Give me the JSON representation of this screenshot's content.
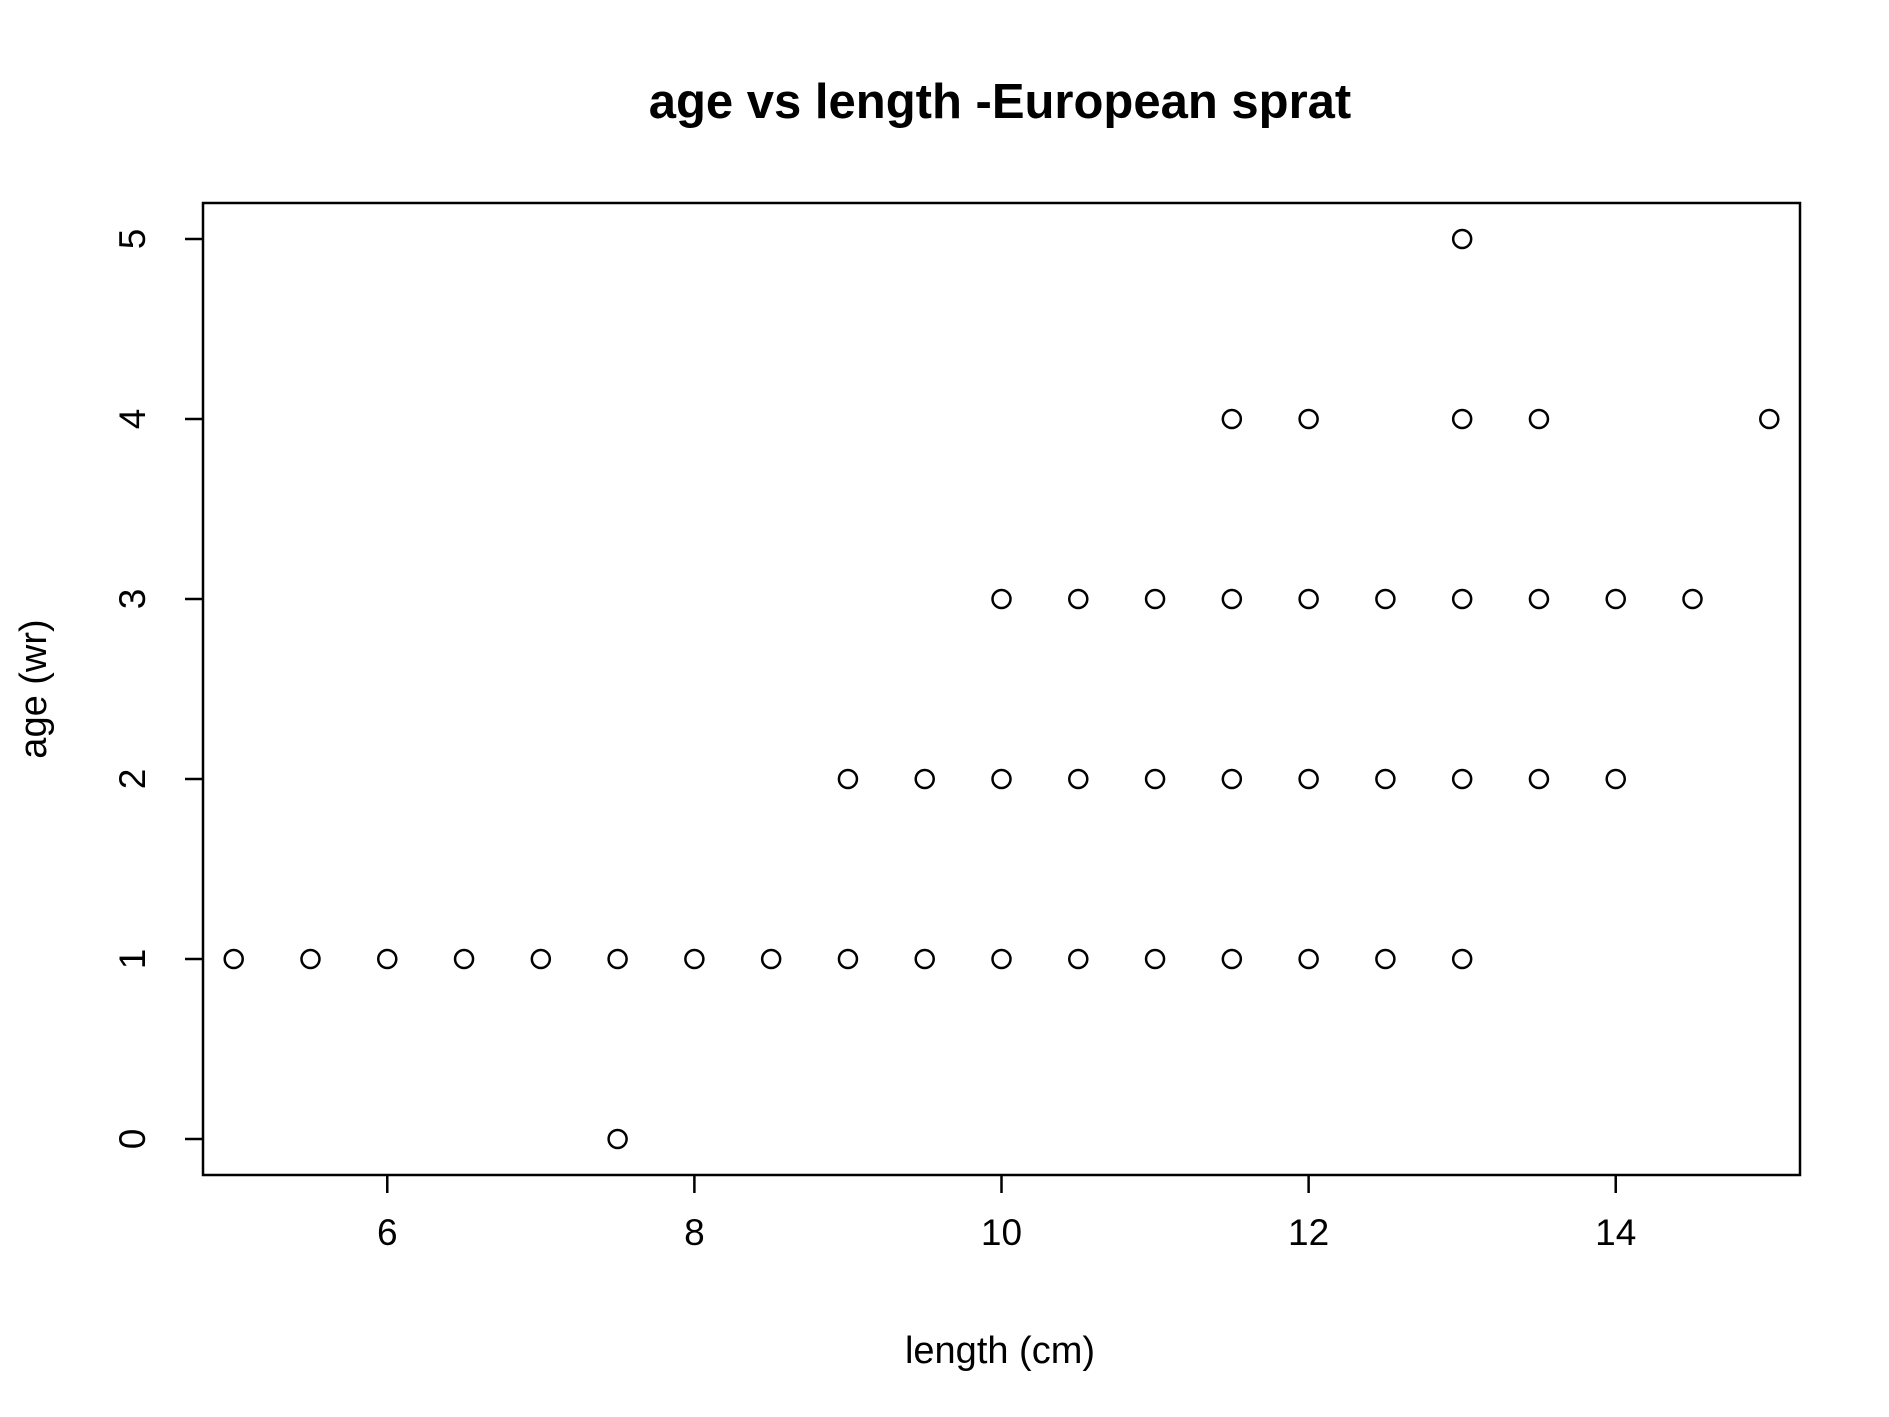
{
  "chart_data": {
    "type": "scatter",
    "title": "age vs length -European sprat",
    "xlabel": "length (cm)",
    "ylabel": "age (wr)",
    "xlim": [
      4.8,
      15.2
    ],
    "ylim": [
      -0.2,
      5.2
    ],
    "xticks": [
      6,
      8,
      10,
      12,
      14
    ],
    "yticks": [
      0,
      1,
      2,
      3,
      4,
      5
    ],
    "xtick_labels": [
      "6",
      "8",
      "10",
      "12",
      "14"
    ],
    "ytick_labels": [
      "0",
      "1",
      "2",
      "3",
      "4",
      "5"
    ],
    "grid": false,
    "legend": "none",
    "marker": "open-circle",
    "color": "#000000",
    "points": [
      [
        5,
        1
      ],
      [
        5.5,
        1
      ],
      [
        6,
        1
      ],
      [
        6.5,
        1
      ],
      [
        7,
        1
      ],
      [
        7.5,
        1
      ],
      [
        8,
        1
      ],
      [
        8.5,
        1
      ],
      [
        9,
        1
      ],
      [
        9.5,
        1
      ],
      [
        10,
        1
      ],
      [
        10.5,
        1
      ],
      [
        11,
        1
      ],
      [
        11.5,
        1
      ],
      [
        12,
        1
      ],
      [
        12.5,
        1
      ],
      [
        13,
        1
      ],
      [
        7.5,
        0
      ],
      [
        9,
        2
      ],
      [
        9.5,
        2
      ],
      [
        10,
        2
      ],
      [
        10.5,
        2
      ],
      [
        11,
        2
      ],
      [
        11.5,
        2
      ],
      [
        12,
        2
      ],
      [
        12.5,
        2
      ],
      [
        13,
        2
      ],
      [
        13.5,
        2
      ],
      [
        14,
        2
      ],
      [
        10,
        3
      ],
      [
        10.5,
        3
      ],
      [
        11,
        3
      ],
      [
        11.5,
        3
      ],
      [
        12,
        3
      ],
      [
        12.5,
        3
      ],
      [
        13,
        3
      ],
      [
        13.5,
        3
      ],
      [
        14,
        3
      ],
      [
        14.5,
        3
      ],
      [
        11.5,
        4
      ],
      [
        12,
        4
      ],
      [
        13,
        4
      ],
      [
        13.5,
        4
      ],
      [
        15,
        4
      ],
      [
        13,
        5
      ]
    ]
  }
}
